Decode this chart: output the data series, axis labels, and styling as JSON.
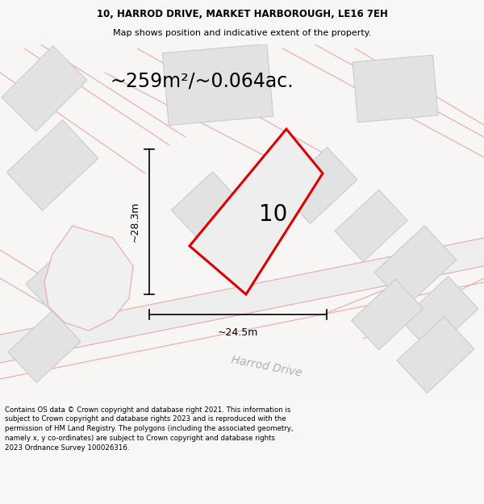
{
  "title_line1": "10, HARROD DRIVE, MARKET HARBOROUGH, LE16 7EH",
  "title_line2": "Map shows position and indicative extent of the property.",
  "area_label": "~259m²/~0.064ac.",
  "number_label": "10",
  "dim_width": "~24.5m",
  "dim_height": "~28.3m",
  "road_label": "Harrod Drive",
  "footer_text": "Contains OS data © Crown copyright and database right 2021. This information is subject to Crown copyright and database rights 2023 and is reproduced with the permission of HM Land Registry. The polygons (including the associated geometry, namely x, y co-ordinates) are subject to Crown copyright and database rights 2023 Ordnance Survey 100026316.",
  "bg_color": "#f7f7f7",
  "map_bg": "#f5f5f5",
  "plot_fill": "#ebebeb",
  "red_outline": "#dd0000",
  "pink_lines": "#e8b0b0",
  "gray_block_face": "#e2e2e2",
  "gray_block_edge": "#c8c8c8",
  "road_gray": "#d5d5d5",
  "title_fontsize": 8.5,
  "area_fontsize": 17,
  "number_fontsize": 20,
  "dim_fontsize": 9,
  "road_fontsize": 10,
  "footer_fontsize": 6.2
}
